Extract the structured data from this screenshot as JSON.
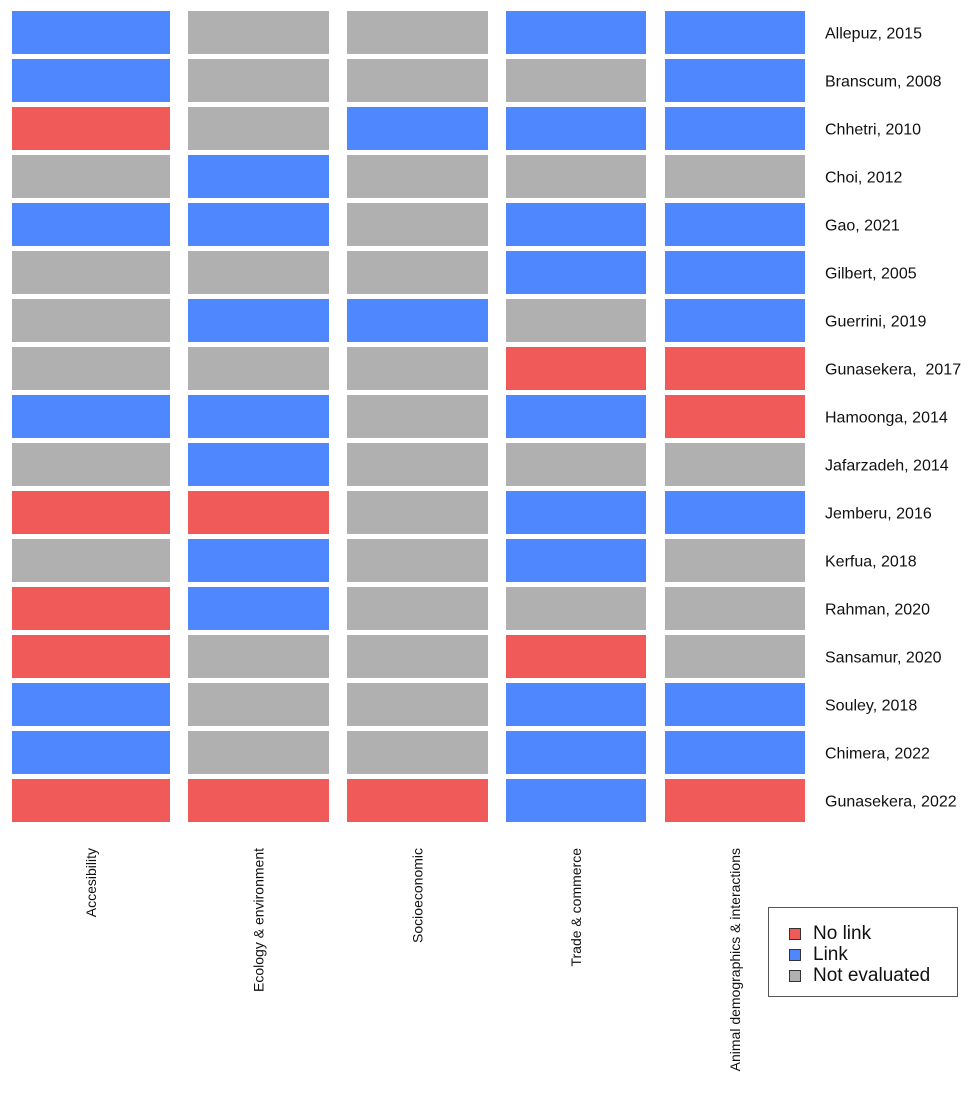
{
  "chart_data": {
    "type": "heatmap",
    "columns": [
      "Accesibility",
      "Ecology & environment",
      "Socioeconomic",
      "Trade & commerce",
      "Animal demographics & interactions"
    ],
    "rows": [
      "Allepuz, 2015",
      "Branscum, 2008",
      "Chhetri, 2010",
      "Choi, 2012",
      "Gao, 2021",
      "Gilbert, 2005",
      "Guerrini, 2019",
      "Gunasekera,  2017",
      "Hamoonga, 2014",
      "Jafarzadeh, 2014",
      "Jemberu, 2016",
      "Kerfua, 2018",
      "Rahman, 2020",
      "Sansamur, 2020",
      "Souley, 2018",
      "Chimera, 2022",
      "Gunasekera, 2022"
    ],
    "values": [
      [
        "Link",
        "Not evaluated",
        "Not evaluated",
        "Link",
        "Link"
      ],
      [
        "Link",
        "Not evaluated",
        "Not evaluated",
        "Not evaluated",
        "Link"
      ],
      [
        "No link",
        "Not evaluated",
        "Link",
        "Link",
        "Link"
      ],
      [
        "Not evaluated",
        "Link",
        "Not evaluated",
        "Not evaluated",
        "Not evaluated"
      ],
      [
        "Link",
        "Link",
        "Not evaluated",
        "Link",
        "Link"
      ],
      [
        "Not evaluated",
        "Not evaluated",
        "Not evaluated",
        "Link",
        "Link"
      ],
      [
        "Not evaluated",
        "Link",
        "Link",
        "Not evaluated",
        "Link"
      ],
      [
        "Not evaluated",
        "Not evaluated",
        "Not evaluated",
        "No link",
        "No link"
      ],
      [
        "Link",
        "Link",
        "Not evaluated",
        "Link",
        "No link"
      ],
      [
        "Not evaluated",
        "Link",
        "Not evaluated",
        "Not evaluated",
        "Not evaluated"
      ],
      [
        "No link",
        "No link",
        "Not evaluated",
        "Link",
        "Link"
      ],
      [
        "Not evaluated",
        "Link",
        "Not evaluated",
        "Link",
        "Not evaluated"
      ],
      [
        "No link",
        "Link",
        "Not evaluated",
        "Not evaluated",
        "Not evaluated"
      ],
      [
        "No link",
        "Not evaluated",
        "Not evaluated",
        "No link",
        "Not evaluated"
      ],
      [
        "Link",
        "Not evaluated",
        "Not evaluated",
        "Link",
        "Link"
      ],
      [
        "Link",
        "Not evaluated",
        "Not evaluated",
        "Link",
        "Link"
      ],
      [
        "No link",
        "No link",
        "No link",
        "Link",
        "No link"
      ]
    ],
    "legend": [
      {
        "label": "No link",
        "color": "#f05a58"
      },
      {
        "label": "Link",
        "color": "#4f87fe"
      },
      {
        "label": "Not evaluated",
        "color": "#b0b0b0"
      }
    ],
    "legend_position": "bottom-right"
  }
}
